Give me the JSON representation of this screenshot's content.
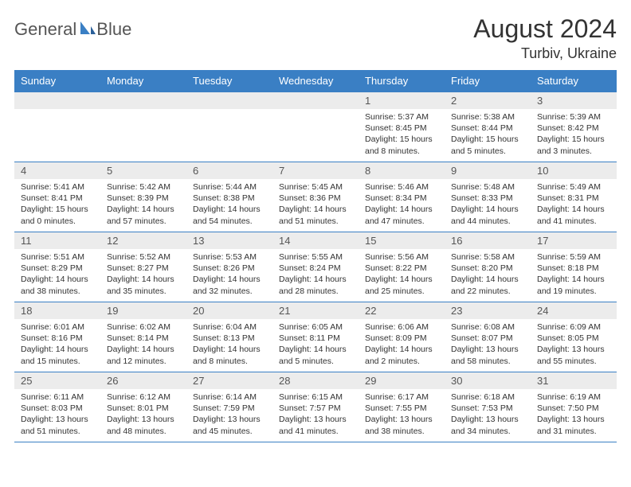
{
  "brand": {
    "name_a": "General",
    "name_b": "Blue"
  },
  "title": "August 2024",
  "location": "Turbiv, Ukraine",
  "colors": {
    "header_bg": "#3a7fc4",
    "header_fg": "#ffffff",
    "daynum_bg": "#ececec",
    "text": "#333333",
    "rule": "#3a7fc4"
  },
  "weekdays": [
    "Sunday",
    "Monday",
    "Tuesday",
    "Wednesday",
    "Thursday",
    "Friday",
    "Saturday"
  ],
  "weeks": [
    [
      null,
      null,
      null,
      null,
      {
        "n": "1",
        "sr": "5:37 AM",
        "ss": "8:45 PM",
        "dl": "15 hours and 8 minutes."
      },
      {
        "n": "2",
        "sr": "5:38 AM",
        "ss": "8:44 PM",
        "dl": "15 hours and 5 minutes."
      },
      {
        "n": "3",
        "sr": "5:39 AM",
        "ss": "8:42 PM",
        "dl": "15 hours and 3 minutes."
      }
    ],
    [
      {
        "n": "4",
        "sr": "5:41 AM",
        "ss": "8:41 PM",
        "dl": "15 hours and 0 minutes."
      },
      {
        "n": "5",
        "sr": "5:42 AM",
        "ss": "8:39 PM",
        "dl": "14 hours and 57 minutes."
      },
      {
        "n": "6",
        "sr": "5:44 AM",
        "ss": "8:38 PM",
        "dl": "14 hours and 54 minutes."
      },
      {
        "n": "7",
        "sr": "5:45 AM",
        "ss": "8:36 PM",
        "dl": "14 hours and 51 minutes."
      },
      {
        "n": "8",
        "sr": "5:46 AM",
        "ss": "8:34 PM",
        "dl": "14 hours and 47 minutes."
      },
      {
        "n": "9",
        "sr": "5:48 AM",
        "ss": "8:33 PM",
        "dl": "14 hours and 44 minutes."
      },
      {
        "n": "10",
        "sr": "5:49 AM",
        "ss": "8:31 PM",
        "dl": "14 hours and 41 minutes."
      }
    ],
    [
      {
        "n": "11",
        "sr": "5:51 AM",
        "ss": "8:29 PM",
        "dl": "14 hours and 38 minutes."
      },
      {
        "n": "12",
        "sr": "5:52 AM",
        "ss": "8:27 PM",
        "dl": "14 hours and 35 minutes."
      },
      {
        "n": "13",
        "sr": "5:53 AM",
        "ss": "8:26 PM",
        "dl": "14 hours and 32 minutes."
      },
      {
        "n": "14",
        "sr": "5:55 AM",
        "ss": "8:24 PM",
        "dl": "14 hours and 28 minutes."
      },
      {
        "n": "15",
        "sr": "5:56 AM",
        "ss": "8:22 PM",
        "dl": "14 hours and 25 minutes."
      },
      {
        "n": "16",
        "sr": "5:58 AM",
        "ss": "8:20 PM",
        "dl": "14 hours and 22 minutes."
      },
      {
        "n": "17",
        "sr": "5:59 AM",
        "ss": "8:18 PM",
        "dl": "14 hours and 19 minutes."
      }
    ],
    [
      {
        "n": "18",
        "sr": "6:01 AM",
        "ss": "8:16 PM",
        "dl": "14 hours and 15 minutes."
      },
      {
        "n": "19",
        "sr": "6:02 AM",
        "ss": "8:14 PM",
        "dl": "14 hours and 12 minutes."
      },
      {
        "n": "20",
        "sr": "6:04 AM",
        "ss": "8:13 PM",
        "dl": "14 hours and 8 minutes."
      },
      {
        "n": "21",
        "sr": "6:05 AM",
        "ss": "8:11 PM",
        "dl": "14 hours and 5 minutes."
      },
      {
        "n": "22",
        "sr": "6:06 AM",
        "ss": "8:09 PM",
        "dl": "14 hours and 2 minutes."
      },
      {
        "n": "23",
        "sr": "6:08 AM",
        "ss": "8:07 PM",
        "dl": "13 hours and 58 minutes."
      },
      {
        "n": "24",
        "sr": "6:09 AM",
        "ss": "8:05 PM",
        "dl": "13 hours and 55 minutes."
      }
    ],
    [
      {
        "n": "25",
        "sr": "6:11 AM",
        "ss": "8:03 PM",
        "dl": "13 hours and 51 minutes."
      },
      {
        "n": "26",
        "sr": "6:12 AM",
        "ss": "8:01 PM",
        "dl": "13 hours and 48 minutes."
      },
      {
        "n": "27",
        "sr": "6:14 AM",
        "ss": "7:59 PM",
        "dl": "13 hours and 45 minutes."
      },
      {
        "n": "28",
        "sr": "6:15 AM",
        "ss": "7:57 PM",
        "dl": "13 hours and 41 minutes."
      },
      {
        "n": "29",
        "sr": "6:17 AM",
        "ss": "7:55 PM",
        "dl": "13 hours and 38 minutes."
      },
      {
        "n": "30",
        "sr": "6:18 AM",
        "ss": "7:53 PM",
        "dl": "13 hours and 34 minutes."
      },
      {
        "n": "31",
        "sr": "6:19 AM",
        "ss": "7:50 PM",
        "dl": "13 hours and 31 minutes."
      }
    ]
  ],
  "labels": {
    "sunrise": "Sunrise: ",
    "sunset": "Sunset: ",
    "daylight": "Daylight: "
  }
}
